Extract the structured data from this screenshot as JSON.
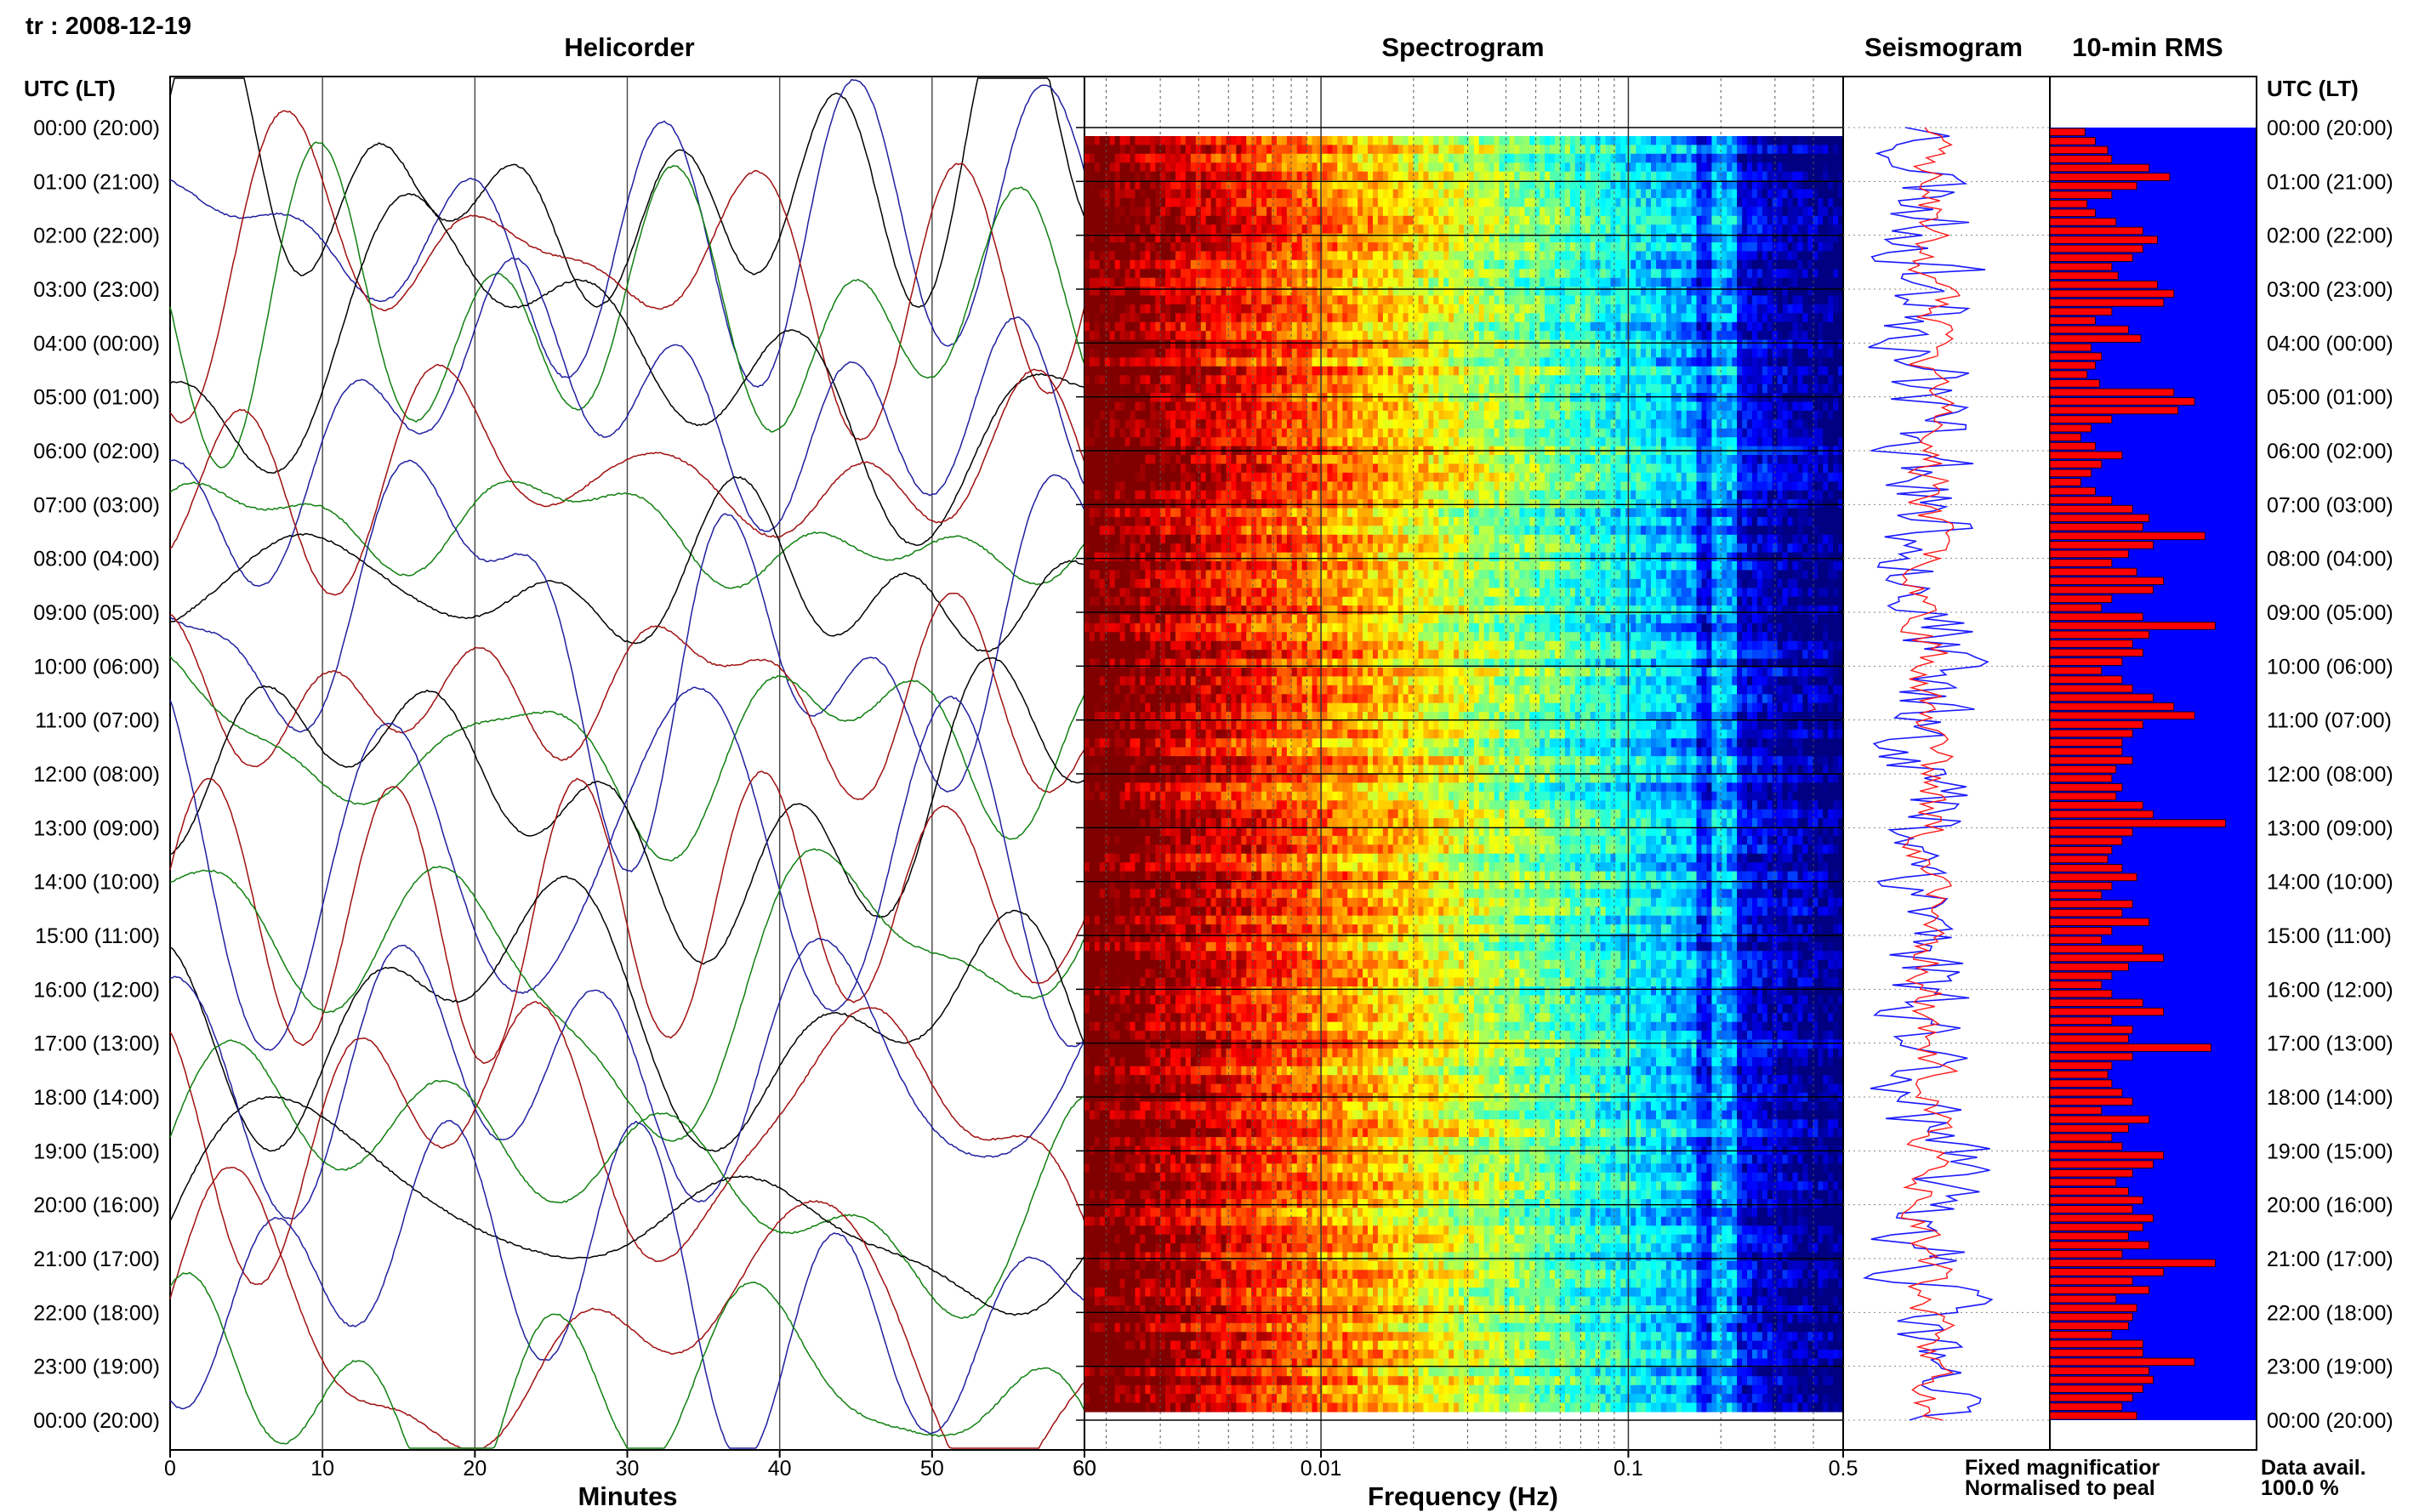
{
  "header": {
    "station_date": "tr : 2008-12-19"
  },
  "panels": {
    "helicorder": {
      "title": "Helicorder",
      "xlabel": "Minutes"
    },
    "spectrogram": {
      "title": "Spectrogram",
      "xlabel": "Frequency (Hz)"
    },
    "seismogram": {
      "title": "Seismogram"
    },
    "rms": {
      "title": "10-min RMS"
    }
  },
  "time_axis": {
    "heading": "UTC (LT)",
    "labels": [
      "00:00 (20:00)",
      "01:00 (21:00)",
      "02:00 (22:00)",
      "03:00 (23:00)",
      "04:00 (00:00)",
      "05:00 (01:00)",
      "06:00 (02:00)",
      "07:00 (03:00)",
      "08:00 (04:00)",
      "09:00 (05:00)",
      "10:00 (06:00)",
      "11:00 (07:00)",
      "12:00 (08:00)",
      "13:00 (09:00)",
      "14:00 (10:00)",
      "15:00 (11:00)",
      "16:00 (12:00)",
      "17:00 (13:00)",
      "18:00 (14:00)",
      "19:00 (15:00)",
      "20:00 (16:00)",
      "21:00 (17:00)",
      "22:00 (18:00)",
      "23:00 (19:00)",
      "00:00 (20:00)"
    ]
  },
  "legend": {
    "fixed": "Fixed magnificatior",
    "normalised": "Normalised to peal",
    "fixed_color": "#1a1aff",
    "normalised_color": "#ff1a1a"
  },
  "availability": {
    "label": "Data avail.",
    "value": "100.0 %"
  },
  "colors": {
    "helicorder_traces": [
      "#000000",
      "#2020a0",
      "#a01010",
      "#108010"
    ],
    "rms_bar": "#ff0000",
    "rms_background": "#0000ff"
  },
  "chart_data": [
    {
      "type": "line",
      "name": "helicorder",
      "title": "Helicorder",
      "xlabel": "Minutes",
      "xlim": [
        0,
        60
      ],
      "xticks": [
        "0",
        "10",
        "20",
        "30",
        "40",
        "50",
        "60"
      ],
      "rows": 24,
      "grid": true
    },
    {
      "type": "heatmap",
      "name": "spectrogram",
      "title": "Spectrogram",
      "xlabel": "Frequency (Hz)",
      "xscale": "log",
      "xlim": [
        0.0017,
        0.5
      ],
      "xticks": [
        "60",
        "0.01",
        "0.1",
        "0.5"
      ],
      "time_step_minutes": 10,
      "colormap": "jet (dark red = high power at low frequency, blue = low power at high frequency)"
    },
    {
      "type": "line",
      "name": "seismogram",
      "title": "Seismogram",
      "series": [
        {
          "name": "Fixed magnificatior",
          "color": "#1a1aff"
        },
        {
          "name": "Normalised to peal",
          "color": "#ff1a1a"
        }
      ]
    },
    {
      "type": "bar",
      "name": "rms",
      "title": "10-min RMS",
      "orientation": "horizontal",
      "interval_minutes": 10,
      "values": [
        0.17,
        0.22,
        0.28,
        0.3,
        0.48,
        0.58,
        0.42,
        0.3,
        0.18,
        0.22,
        0.32,
        0.45,
        0.52,
        0.45,
        0.4,
        0.3,
        0.33,
        0.52,
        0.6,
        0.55,
        0.3,
        0.22,
        0.38,
        0.44,
        0.2,
        0.25,
        0.22,
        0.18,
        0.24,
        0.6,
        0.7,
        0.62,
        0.3,
        0.2,
        0.15,
        0.22,
        0.35,
        0.25,
        0.2,
        0.15,
        0.22,
        0.3,
        0.4,
        0.48,
        0.45,
        0.75,
        0.5,
        0.38,
        0.3,
        0.42,
        0.55,
        0.5,
        0.3,
        0.25,
        0.45,
        0.8,
        0.48,
        0.4,
        0.45,
        0.35,
        0.25,
        0.35,
        0.4,
        0.5,
        0.6,
        0.7,
        0.45,
        0.4,
        0.35,
        0.35,
        0.4,
        0.32,
        0.3,
        0.35,
        0.32,
        0.45,
        0.5,
        0.85,
        0.4,
        0.35,
        0.3,
        0.28,
        0.35,
        0.42,
        0.3,
        0.25,
        0.4,
        0.35,
        0.48,
        0.3,
        0.25,
        0.45,
        0.55,
        0.38,
        0.3,
        0.25,
        0.3,
        0.45,
        0.55,
        0.3,
        0.4,
        0.38,
        0.78,
        0.4,
        0.3,
        0.28,
        0.3,
        0.35,
        0.4,
        0.25,
        0.48,
        0.38,
        0.3,
        0.35,
        0.55,
        0.5,
        0.4,
        0.32,
        0.38,
        0.45,
        0.4,
        0.5,
        0.45,
        0.38,
        0.48,
        0.35,
        0.8,
        0.55,
        0.4,
        0.48,
        0.32,
        0.42,
        0.4,
        0.38,
        0.3,
        0.45,
        0.45,
        0.7,
        0.48,
        0.5,
        0.45,
        0.4,
        0.35,
        0.42
      ]
    }
  ]
}
